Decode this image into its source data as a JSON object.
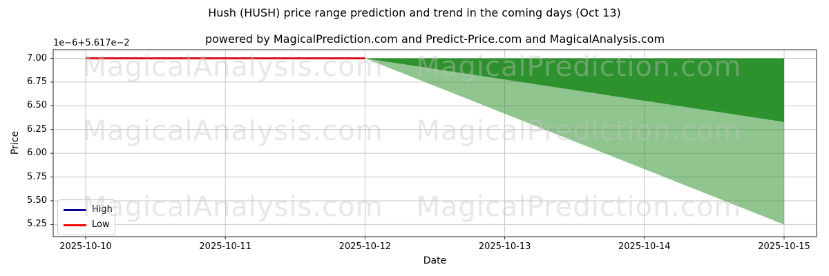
{
  "figure": {
    "title": "Hush (HUSH) price range prediction and trend in the coming days (Oct 13)",
    "subtitle": "powered by MagicalPrediction.com and Predict-Price.com and MagicalAnalysis.com",
    "background": "#ffffff"
  },
  "watermarks": {
    "texts": [
      "MagicalAnalysis.com",
      "MagicalPrediction.com"
    ]
  },
  "chart_data": {
    "type": "area",
    "title": "Hush (HUSH) price range prediction and trend in the coming days (Oct 13)",
    "subtitle": "powered by MagicalPrediction.com and Predict-Price.com and MagicalAnalysis.com",
    "xlabel": "Date",
    "ylabel": "Price",
    "y_offset_text": "1e−6+5.617e−2",
    "grid": true,
    "grid_color": "#c4c4c4",
    "spine_color": "#222222",
    "x_ticks": [
      "2025-10-10",
      "2025-10-11",
      "2025-10-12",
      "2025-10-13",
      "2025-10-14",
      "2025-10-15"
    ],
    "y_ticks": [
      {
        "label": "7.00",
        "value": 7.0
      },
      {
        "label": "6.75",
        "value": 6.75
      },
      {
        "label": "6.50",
        "value": 6.5
      },
      {
        "label": "6.25",
        "value": 6.25
      },
      {
        "label": "6.00",
        "value": 6.0
      },
      {
        "label": "5.75",
        "value": 5.75
      },
      {
        "label": "5.50",
        "value": 5.5
      },
      {
        "label": "5.25",
        "value": 5.25
      }
    ],
    "ylim": [
      5.12,
      7.09
    ],
    "lines": [
      {
        "name": "High",
        "color": "#00008B",
        "width": 2.5,
        "x": [
          "2025-10-10",
          "2025-10-11",
          "2025-10-12"
        ],
        "values": [
          7.0,
          7.0,
          7.0
        ]
      },
      {
        "name": "Low",
        "color": "#EE0000",
        "width": 2.5,
        "x": [
          "2025-10-10",
          "2025-10-11",
          "2025-10-12"
        ],
        "values": [
          7.0,
          7.0,
          7.0
        ]
      }
    ],
    "bands": [
      {
        "name": "predicted-outer-range",
        "color": "#228B22",
        "opacity": 0.5,
        "x": [
          "2025-10-12",
          "2025-10-15"
        ],
        "upper": [
          7.0,
          7.0
        ],
        "lower": [
          7.0,
          5.25
        ]
      },
      {
        "name": "predicted-inner-range",
        "color": "#228B22",
        "opacity": 0.9,
        "x": [
          "2025-10-12",
          "2025-10-15"
        ],
        "upper": [
          7.0,
          7.0
        ],
        "lower": [
          7.0,
          6.33
        ]
      }
    ],
    "legend": {
      "position": "lower left",
      "entries": [
        {
          "label": "High",
          "color": "#00008B"
        },
        {
          "label": "Low",
          "color": "#EE0000"
        }
      ]
    }
  }
}
